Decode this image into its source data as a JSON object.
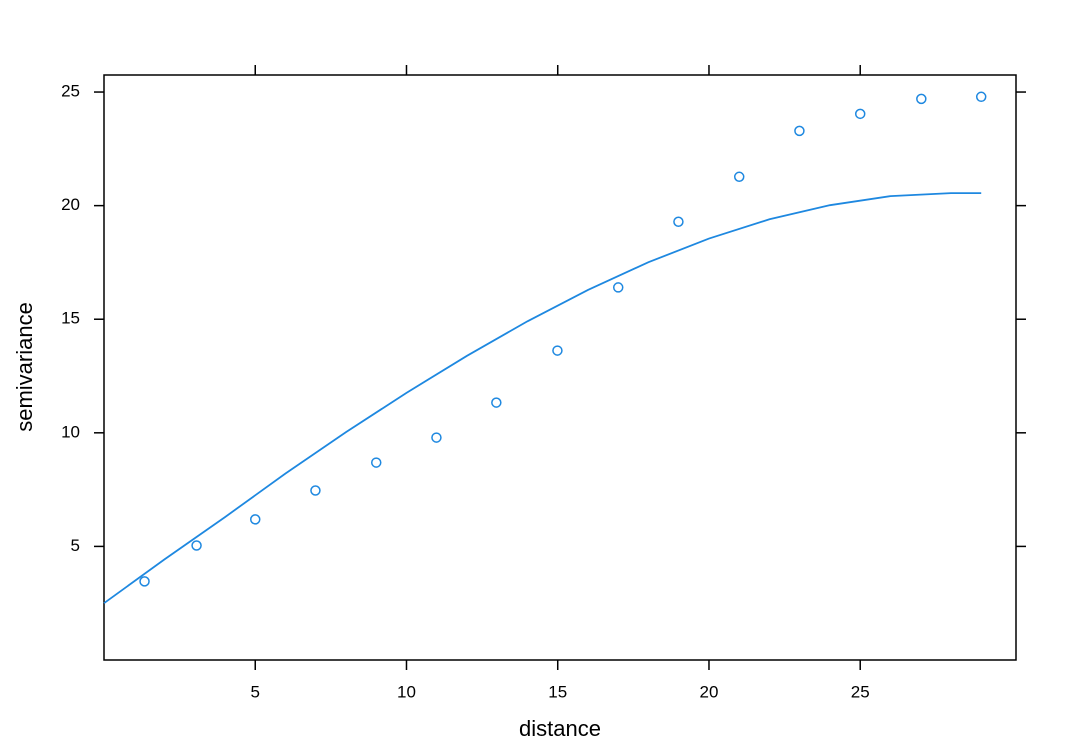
{
  "chart_data": {
    "type": "scatter",
    "x_label": "distance",
    "y_label": "semivariance",
    "xlim": [
      0,
      30.15
    ],
    "ylim": [
      0,
      25.75
    ],
    "xticks": [
      5,
      10,
      15,
      20,
      25
    ],
    "yticks": [
      5,
      10,
      15,
      20,
      25
    ],
    "series": [
      {
        "type": "scatter",
        "color": "#1e88e0",
        "x": [
          1.34,
          3.06,
          5.0,
          6.99,
          9.0,
          10.99,
          12.97,
          14.99,
          17.0,
          18.99,
          21.0,
          22.99,
          25.0,
          27.02,
          29.0
        ],
        "values": [
          3.46,
          5.04,
          6.19,
          7.46,
          8.69,
          9.79,
          11.33,
          13.62,
          16.4,
          19.29,
          21.27,
          23.29,
          24.04,
          24.7,
          24.79
        ]
      },
      {
        "type": "line",
        "color": "#1e88e0",
        "x": [
          0,
          2,
          4,
          6,
          8,
          10,
          12,
          14,
          16,
          18,
          20,
          22,
          24,
          26,
          28,
          29
        ],
        "values": [
          2.5,
          4.43,
          6.29,
          8.21,
          10.03,
          11.76,
          13.39,
          14.91,
          16.29,
          17.51,
          18.55,
          19.4,
          20.02,
          20.42,
          20.55,
          20.55
        ]
      }
    ]
  }
}
